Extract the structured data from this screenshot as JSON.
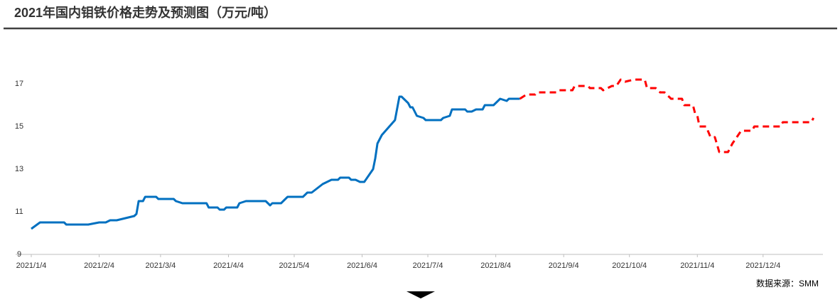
{
  "chart_data": {
    "type": "line",
    "title": "2021年国内钼铁价格走势及预测图（万元/吨）",
    "source": "数据来源：SMM",
    "x": [
      "2021/1/4",
      "2021/1/8",
      "2021/1/19",
      "2021/1/20",
      "2021/1/30",
      "2021/2/4",
      "2021/2/7",
      "2021/2/9",
      "2021/2/12",
      "2021/2/20",
      "2021/2/21",
      "2021/2/22",
      "2021/2/24",
      "2021/2/25",
      "2021/3/2",
      "2021/3/3",
      "2021/3/10",
      "2021/3/11",
      "2021/3/14",
      "2021/3/25",
      "2021/3/26",
      "2021/3/30",
      "2021/3/31",
      "2021/4/2",
      "2021/4/3",
      "2021/4/8",
      "2021/4/9",
      "2021/4/12",
      "2021/4/21",
      "2021/4/23",
      "2021/4/24",
      "2021/4/28",
      "2021/4/30",
      "2021/5/1",
      "2021/5/8",
      "2021/5/10",
      "2021/5/12",
      "2021/5/17",
      "2021/5/21",
      "2021/5/24",
      "2021/5/25",
      "2021/5/29",
      "2021/5/30",
      "2021/6/1",
      "2021/6/3",
      "2021/6/5",
      "2021/6/9",
      "2021/6/10",
      "2021/6/11",
      "2021/6/13",
      "2021/6/19",
      "2021/6/21",
      "2021/6/22",
      "2021/6/25",
      "2021/6/26",
      "2021/6/27",
      "2021/6/29",
      "2021/7/2",
      "2021/7/3",
      "2021/7/10",
      "2021/7/11",
      "2021/7/14",
      "2021/7/15",
      "2021/7/21",
      "2021/7/22",
      "2021/7/24",
      "2021/7/26",
      "2021/7/29",
      "2021/7/30",
      "2021/8/3",
      "2021/8/6",
      "2021/8/9",
      "2021/8/10",
      "2021/8/15",
      "2021/8/18",
      "2021/8/22",
      "2021/8/23",
      "2021/9/1",
      "2021/9/2",
      "2021/9/8",
      "2021/9/9",
      "2021/9/15",
      "2021/9/16",
      "2021/9/21",
      "2021/9/22",
      "2021/9/24",
      "2021/9/26",
      "2021/9/28",
      "2021/9/30",
      "2021/10/2",
      "2021/10/6",
      "2021/10/11",
      "2021/10/12",
      "2021/10/16",
      "2021/10/18",
      "2021/10/20",
      "2021/10/23",
      "2021/10/28",
      "2021/10/29",
      "2021/11/2",
      "2021/11/3",
      "2021/11/4",
      "2021/11/5",
      "2021/11/8",
      "2021/11/10",
      "2021/11/12",
      "2021/11/14",
      "2021/11/18",
      "2021/11/20",
      "2021/11/22",
      "2021/11/24",
      "2021/11/29",
      "2021/11/30",
      "2021/12/12",
      "2021/12/13",
      "2021/12/26",
      "2021/12/27"
    ],
    "series": [
      {
        "color": "#0070c0",
        "dashed": false,
        "values": [
          10.2,
          10.5,
          10.5,
          10.4,
          10.4,
          10.5,
          10.5,
          10.6,
          10.6,
          10.8,
          10.9,
          11.5,
          11.5,
          11.7,
          11.7,
          11.6,
          11.6,
          11.5,
          11.4,
          11.4,
          11.2,
          11.2,
          11.1,
          11.1,
          11.2,
          11.2,
          11.4,
          11.5,
          11.5,
          11.3,
          11.4,
          11.4,
          11.6,
          11.7,
          11.7,
          11.9,
          11.9,
          12.3,
          12.5,
          12.5,
          12.6,
          12.6,
          12.5,
          12.5,
          12.4,
          12.4,
          13.0,
          13.5,
          14.2,
          14.6,
          15.3,
          16.4,
          16.4,
          16.1,
          15.9,
          15.9,
          15.5,
          15.4,
          15.3,
          15.3,
          15.4,
          15.5,
          15.8,
          15.8,
          15.7,
          15.7,
          15.8,
          15.8,
          16.0,
          16.0,
          16.3,
          16.2,
          16.3,
          16.3,
          null,
          null,
          null,
          null,
          null,
          null,
          null,
          null,
          null,
          null,
          null,
          null,
          null,
          null,
          null,
          null,
          null,
          null,
          null,
          null,
          null,
          null,
          null,
          null,
          null,
          null,
          null,
          null,
          null,
          null,
          null,
          null,
          null,
          null,
          null,
          null,
          null,
          null,
          null,
          null,
          null,
          null,
          null
        ]
      },
      {
        "color": "#ff0000",
        "dashed": true,
        "values": [
          null,
          null,
          null,
          null,
          null,
          null,
          null,
          null,
          null,
          null,
          null,
          null,
          null,
          null,
          null,
          null,
          null,
          null,
          null,
          null,
          null,
          null,
          null,
          null,
          null,
          null,
          null,
          null,
          null,
          null,
          null,
          null,
          null,
          null,
          null,
          null,
          null,
          null,
          null,
          null,
          null,
          null,
          null,
          null,
          null,
          null,
          null,
          null,
          null,
          null,
          null,
          null,
          null,
          null,
          null,
          null,
          null,
          null,
          null,
          null,
          null,
          null,
          null,
          null,
          null,
          null,
          null,
          null,
          null,
          null,
          null,
          null,
          null,
          16.3,
          16.5,
          16.5,
          16.6,
          16.6,
          16.7,
          16.7,
          16.9,
          16.9,
          16.8,
          16.8,
          16.7,
          16.8,
          16.9,
          16.9,
          17.2,
          17.1,
          17.2,
          17.2,
          16.8,
          16.8,
          16.6,
          16.6,
          16.3,
          16.3,
          16.0,
          16.0,
          15.6,
          15.5,
          15.0,
          15.0,
          14.5,
          14.5,
          13.8,
          13.8,
          14.2,
          14.5,
          14.8,
          14.8,
          15.0,
          15.0,
          15.2,
          15.2,
          15.4
        ]
      }
    ],
    "xlim": [
      "2021/1/4",
      "2021/12/31"
    ],
    "xticks": [
      "2021/1/4",
      "2021/2/4",
      "2021/3/4",
      "2021/4/4",
      "2021/5/4",
      "2021/6/4",
      "2021/7/4",
      "2021/8/4",
      "2021/9/4",
      "2021/10/4",
      "2021/11/4",
      "2021/12/4"
    ],
    "ylim": [
      9,
      19
    ],
    "yticks": [
      9,
      11,
      13,
      15,
      17
    ]
  }
}
